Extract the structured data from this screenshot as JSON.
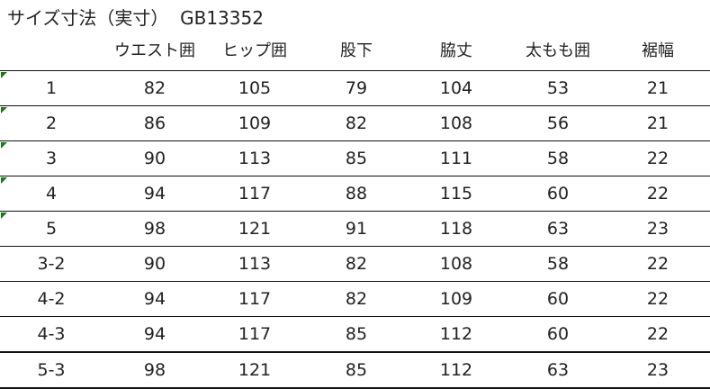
{
  "title": "サイズ寸法（実寸）  GB13352",
  "columns": [
    "",
    "ウエスト囲",
    "ヒップ囲",
    "股下",
    "脇丈",
    "太もも囲",
    "裾幅"
  ],
  "rows": [
    {
      "cells": [
        "1",
        "82",
        "105",
        "79",
        "104",
        "53",
        "21"
      ],
      "flag": true
    },
    {
      "cells": [
        "2",
        "86",
        "109",
        "82",
        "108",
        "56",
        "21"
      ],
      "flag": true
    },
    {
      "cells": [
        "3",
        "90",
        "113",
        "85",
        "111",
        "58",
        "22"
      ],
      "flag": true
    },
    {
      "cells": [
        "4",
        "94",
        "117",
        "88",
        "115",
        "60",
        "22"
      ],
      "flag": true
    },
    {
      "cells": [
        "5",
        "98",
        "121",
        "91",
        "118",
        "63",
        "23"
      ],
      "flag": true
    },
    {
      "cells": [
        "3-2",
        "90",
        "113",
        "82",
        "108",
        "58",
        "22"
      ],
      "flag": false
    },
    {
      "cells": [
        "4-2",
        "94",
        "117",
        "82",
        "109",
        "60",
        "22"
      ],
      "flag": false
    },
    {
      "cells": [
        "4-3",
        "94",
        "117",
        "85",
        "112",
        "60",
        "22"
      ],
      "flag": false
    },
    {
      "cells": [
        "5-3",
        "98",
        "121",
        "85",
        "112",
        "63",
        "23"
      ],
      "flag": false
    }
  ],
  "colors": {
    "flag": "#1a7a1a",
    "grid": "#111111"
  }
}
